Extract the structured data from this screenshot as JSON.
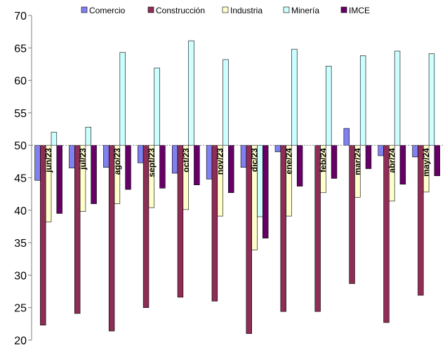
{
  "chart_data": {
    "type": "bar",
    "title": "",
    "xlabel": "",
    "ylabel": "",
    "ylim": [
      20,
      70
    ],
    "yticks": [
      20,
      25,
      30,
      35,
      40,
      45,
      50,
      55,
      60,
      65,
      70
    ],
    "baseline": 50,
    "grid": false,
    "legend_position": "top",
    "categories": [
      "jun/23",
      "jul/23",
      "ago/23",
      "sept/23",
      "oct/23",
      "nov/23",
      "dic/23",
      "ene/24",
      "feb/24",
      "mar/24",
      "abr/24",
      "may/24"
    ],
    "series": [
      {
        "name": "Comercio",
        "color": "#8080f0",
        "values": [
          44.6,
          46.5,
          46.6,
          47.3,
          45.7,
          44.8,
          46.6,
          49.0,
          50.0,
          52.6,
          48.4,
          48.2
        ]
      },
      {
        "name": "Construcción",
        "color": "#8e2d55",
        "values": [
          22.3,
          24.1,
          21.4,
          25.0,
          26.6,
          26.0,
          21.0,
          24.4,
          24.4,
          28.7,
          22.7,
          26.9
        ]
      },
      {
        "name": "Industria",
        "color": "#ffffcc",
        "values": [
          38.2,
          39.8,
          41.0,
          40.4,
          40.1,
          39.1,
          33.9,
          39.1,
          42.7,
          42.0,
          41.4,
          42.8
        ]
      },
      {
        "name": "Minería",
        "color": "#ccffff",
        "values": [
          52.0,
          52.8,
          64.3,
          61.9,
          66.1,
          63.2,
          39.0,
          64.8,
          62.2,
          63.8,
          64.5,
          64.1
        ]
      },
      {
        "name": "IMCE",
        "color": "#660066",
        "values": [
          39.5,
          41.0,
          43.2,
          43.4,
          43.9,
          42.7,
          35.7,
          43.7,
          44.9,
          46.4,
          44.0,
          45.3
        ]
      }
    ]
  }
}
